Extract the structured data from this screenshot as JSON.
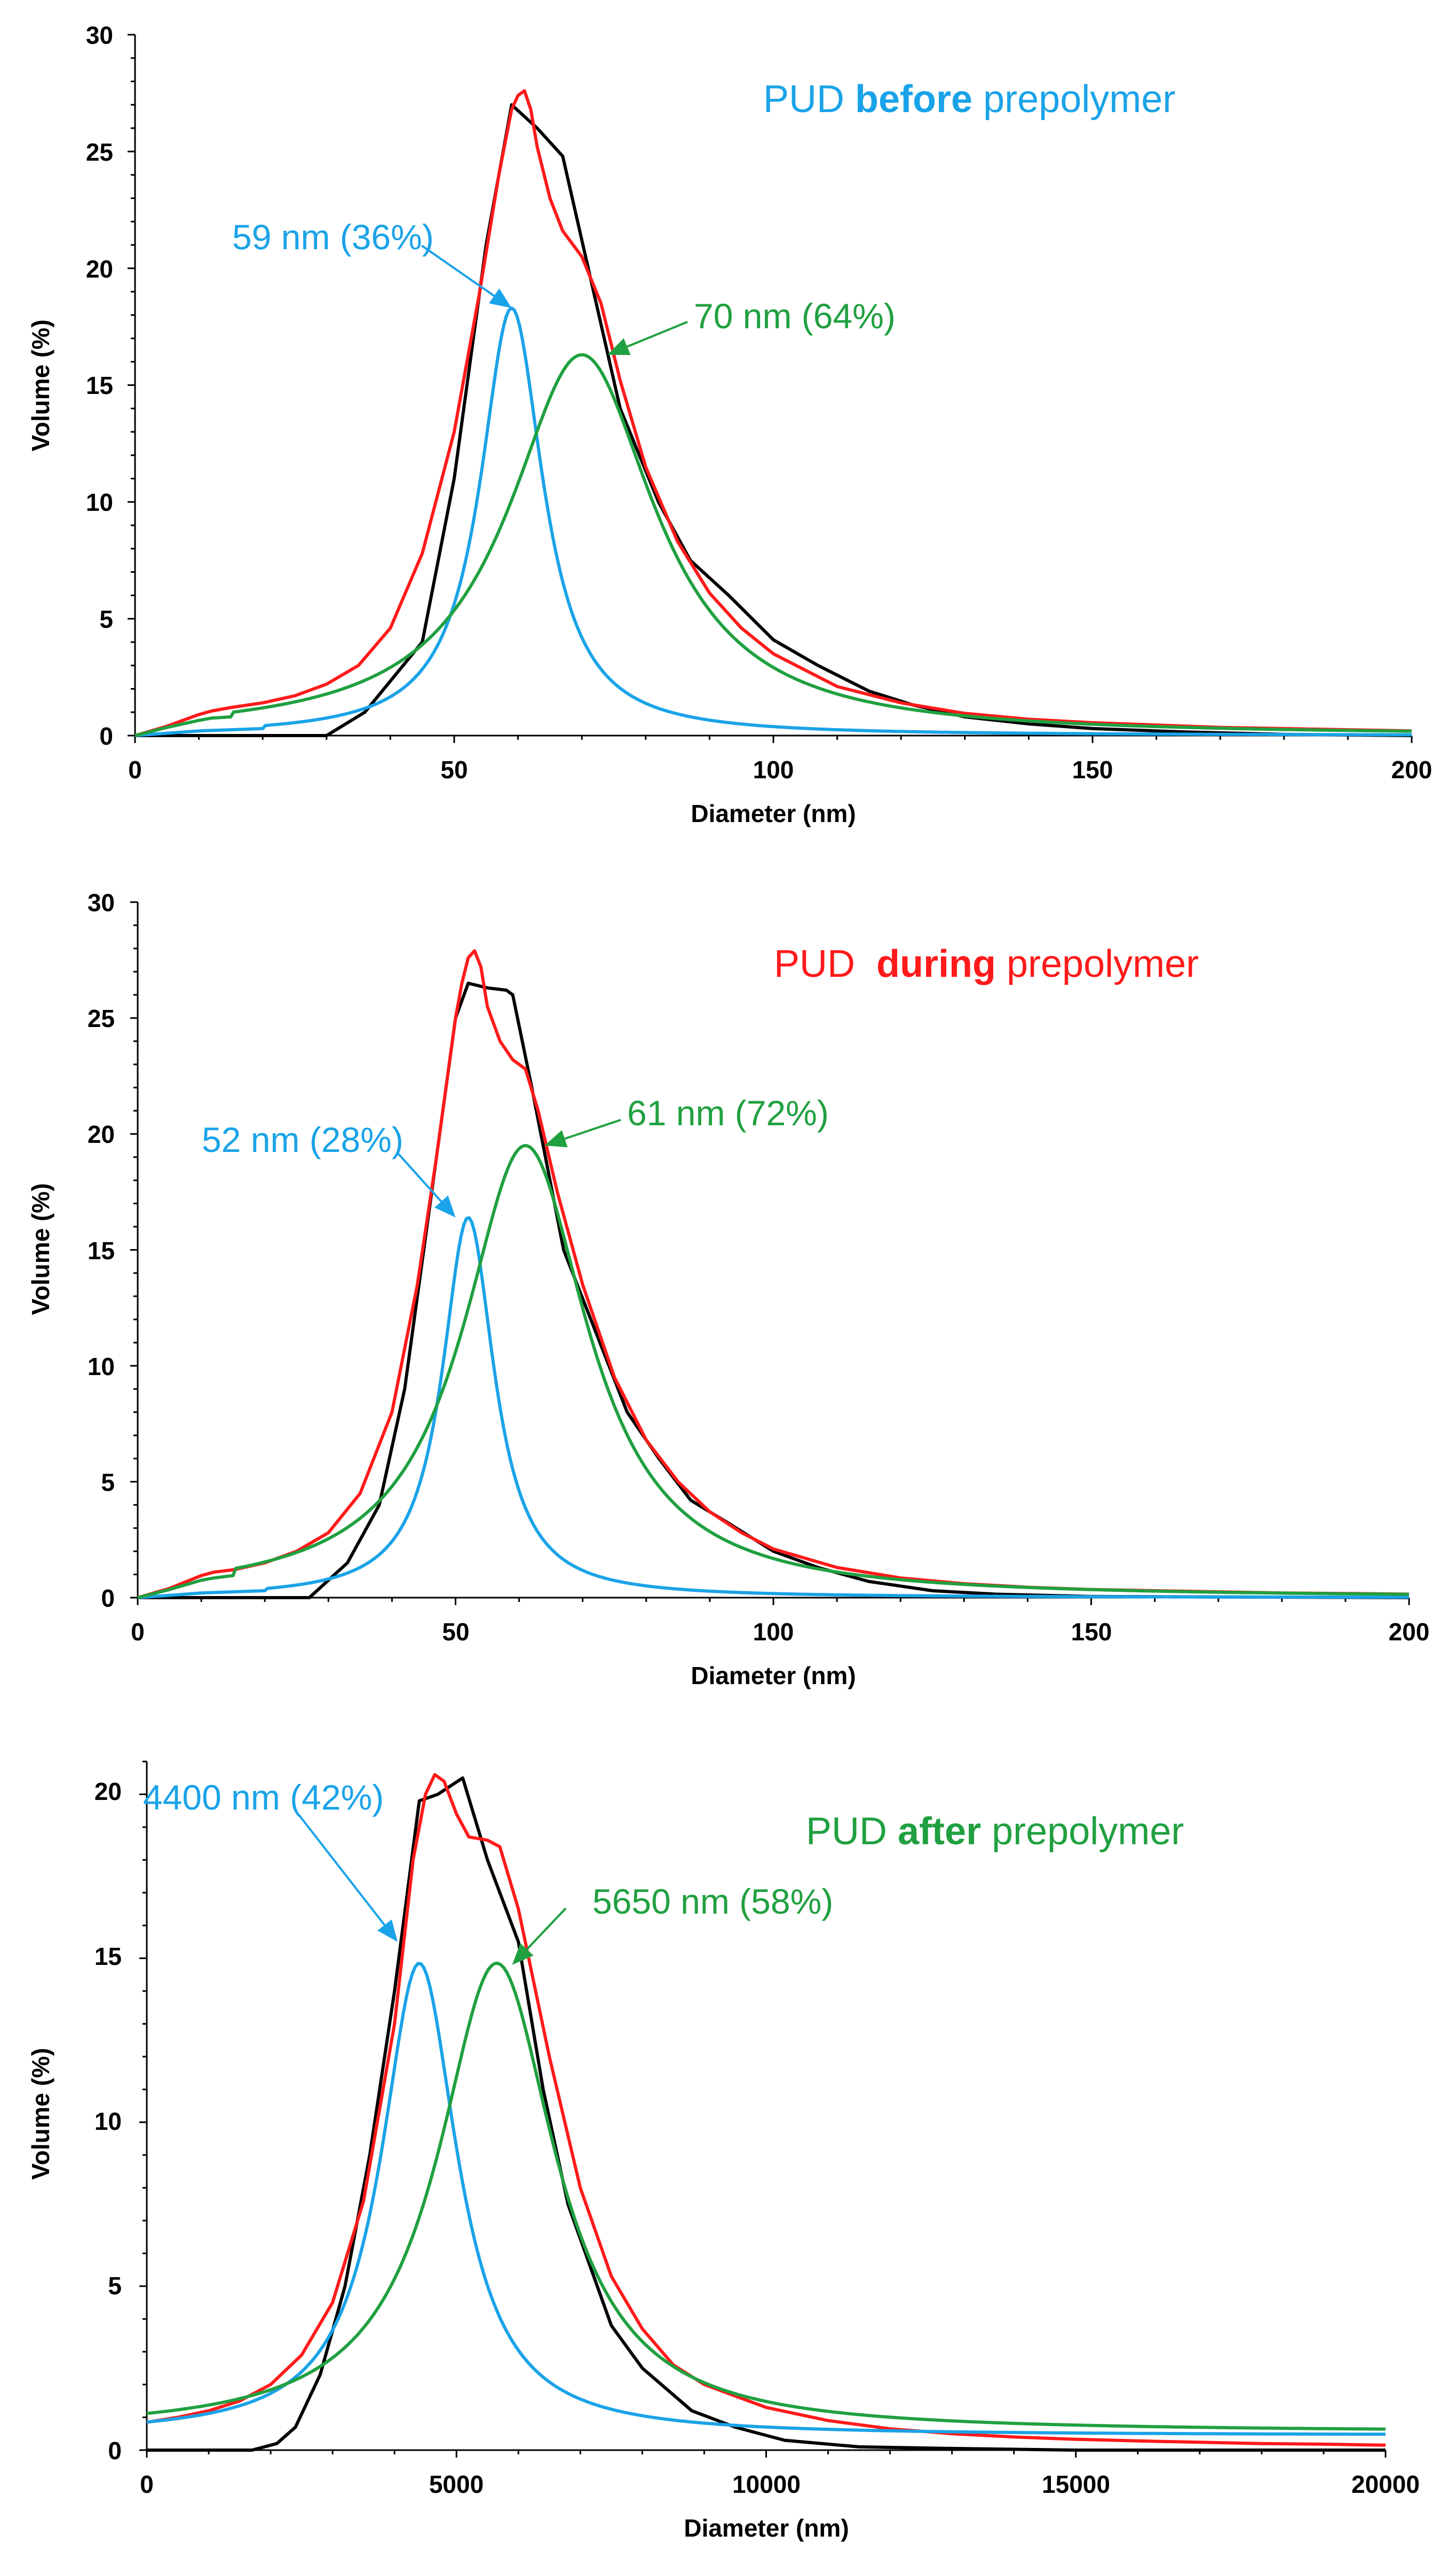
{
  "chart_data": [
    {
      "type": "line",
      "title": {
        "prefix": "PUD ",
        "bold": "before",
        "suffix": " prepolymer",
        "color": "#1AA3E8"
      },
      "xlabel": "Diameter (nm)",
      "ylabel": "Volume (%)",
      "xlim": [
        0,
        200
      ],
      "ylim": [
        0,
        30
      ],
      "xticks": [
        0,
        50,
        100,
        150,
        200
      ],
      "yticks": [
        0,
        5,
        10,
        15,
        20,
        25,
        30
      ],
      "x_minor": 10,
      "y_minor": 1,
      "series": [
        {
          "name": "measured",
          "color": "#000000",
          "kind": "points",
          "points": [
            [
              0,
              0
            ],
            [
              30,
              0
            ],
            [
              36,
              1
            ],
            [
              45,
              4
            ],
            [
              50,
              11
            ],
            [
              55,
              21
            ],
            [
              59,
              27
            ],
            [
              63,
              26
            ],
            [
              67,
              24.8
            ],
            [
              71,
              20
            ],
            [
              76,
              14
            ],
            [
              82,
              10
            ],
            [
              87,
              7.5
            ],
            [
              93,
              6
            ],
            [
              100,
              4.1
            ],
            [
              107,
              3
            ],
            [
              115,
              1.9
            ],
            [
              122,
              1.3
            ],
            [
              130,
              0.8
            ],
            [
              140,
              0.5
            ],
            [
              150,
              0.3
            ],
            [
              165,
              0.15
            ],
            [
              180,
              0.05
            ],
            [
              200,
              0
            ]
          ]
        },
        {
          "name": "fit-total",
          "color": "#FF1A1A",
          "kind": "points",
          "points": [
            [
              0,
              0
            ],
            [
              5,
              0.4
            ],
            [
              10,
              0.9
            ],
            [
              12,
              1.05
            ],
            [
              15,
              1.2
            ],
            [
              20,
              1.4
            ],
            [
              25,
              1.7
            ],
            [
              30,
              2.2
            ],
            [
              35,
              3
            ],
            [
              40,
              4.6
            ],
            [
              45,
              7.8
            ],
            [
              50,
              13
            ],
            [
              54,
              19
            ],
            [
              57,
              24
            ],
            [
              59,
              26.8
            ],
            [
              60,
              27.4
            ],
            [
              61,
              27.6
            ],
            [
              62,
              26.8
            ],
            [
              63,
              25.2
            ],
            [
              65,
              23
            ],
            [
              67,
              21.6
            ],
            [
              70,
              20.5
            ],
            [
              73,
              18.5
            ],
            [
              76,
              15.2
            ],
            [
              80,
              11.5
            ],
            [
              85,
              8.3
            ],
            [
              90,
              6.1
            ],
            [
              95,
              4.6
            ],
            [
              100,
              3.5
            ],
            [
              110,
              2.1
            ],
            [
              120,
              1.4
            ],
            [
              130,
              0.95
            ],
            [
              140,
              0.7
            ],
            [
              150,
              0.55
            ],
            [
              160,
              0.45
            ],
            [
              170,
              0.35
            ],
            [
              180,
              0.3
            ],
            [
              190,
              0.25
            ],
            [
              200,
              0.2
            ]
          ]
        },
        {
          "name": "peak-1",
          "color": "#1AA3E8",
          "kind": "lorentz",
          "center": 59,
          "height": 18.3,
          "hwhm": 6,
          "baseline": 0,
          "pre_points": [
            [
              0,
              0
            ],
            [
              5,
              0.1
            ],
            [
              10,
              0.2
            ],
            [
              15,
              0.25
            ],
            [
              20,
              0.3
            ]
          ]
        },
        {
          "name": "peak-2",
          "color": "#20A040",
          "kind": "lorentz",
          "center": 70,
          "height": 16.3,
          "hwhm": 14,
          "baseline": 0,
          "pre_points": [
            [
              0,
              0
            ],
            [
              5,
              0.35
            ],
            [
              10,
              0.65
            ],
            [
              12,
              0.75
            ],
            [
              15,
              0.8
            ]
          ]
        }
      ],
      "annotations": [
        {
          "text": "59 nm (36%)",
          "color": "#1AA3E8",
          "target": [
            59,
            18.3
          ]
        },
        {
          "text": "70 nm (64%)",
          "color": "#20A040",
          "target": [
            74,
            16.3
          ]
        }
      ]
    },
    {
      "type": "line",
      "title": {
        "prefix": "PUD  ",
        "bold": "during",
        "suffix": " prepolymer",
        "color": "#FF1A1A"
      },
      "xlabel": "Diameter (nm)",
      "ylabel": "Volume (%)",
      "xlim": [
        0,
        200
      ],
      "ylim": [
        0,
        30
      ],
      "xticks": [
        0,
        50,
        100,
        150,
        200
      ],
      "yticks": [
        0,
        5,
        10,
        15,
        20,
        25,
        30
      ],
      "x_minor": 10,
      "y_minor": 1,
      "series": [
        {
          "name": "measured",
          "color": "#000000",
          "kind": "points",
          "points": [
            [
              0,
              0
            ],
            [
              27,
              0
            ],
            [
              33,
              1.5
            ],
            [
              38,
              4
            ],
            [
              42,
              9
            ],
            [
              46,
              17
            ],
            [
              50,
              25
            ],
            [
              52,
              26.5
            ],
            [
              55,
              26.3
            ],
            [
              58,
              26.2
            ],
            [
              59,
              26
            ],
            [
              62,
              22
            ],
            [
              67,
              15
            ],
            [
              72,
              11.5
            ],
            [
              77,
              8
            ],
            [
              82,
              6
            ],
            [
              87,
              4.2
            ],
            [
              93,
              3.2
            ],
            [
              100,
              2
            ],
            [
              107,
              1.3
            ],
            [
              115,
              0.7
            ],
            [
              125,
              0.3
            ],
            [
              135,
              0.15
            ],
            [
              150,
              0.05
            ],
            [
              200,
              0
            ]
          ]
        },
        {
          "name": "fit-total",
          "color": "#FF1A1A",
          "kind": "points",
          "points": [
            [
              0,
              0
            ],
            [
              5,
              0.4
            ],
            [
              10,
              0.95
            ],
            [
              12,
              1.1
            ],
            [
              15,
              1.2
            ],
            [
              20,
              1.5
            ],
            [
              25,
              2.0
            ],
            [
              30,
              2.8
            ],
            [
              35,
              4.5
            ],
            [
              40,
              8
            ],
            [
              44,
              13.5
            ],
            [
              47,
              19
            ],
            [
              50,
              25
            ],
            [
              51,
              26.5
            ],
            [
              52,
              27.6
            ],
            [
              53,
              27.9
            ],
            [
              54,
              27.2
            ],
            [
              55,
              25.5
            ],
            [
              57,
              24
            ],
            [
              59,
              23.2
            ],
            [
              61,
              22.8
            ],
            [
              63,
              21
            ],
            [
              66,
              17.5
            ],
            [
              70,
              13.5
            ],
            [
              75,
              9.5
            ],
            [
              80,
              6.8
            ],
            [
              85,
              5
            ],
            [
              90,
              3.7
            ],
            [
              95,
              2.8
            ],
            [
              100,
              2.1
            ],
            [
              110,
              1.3
            ],
            [
              120,
              0.85
            ],
            [
              130,
              0.6
            ],
            [
              140,
              0.45
            ],
            [
              150,
              0.35
            ],
            [
              160,
              0.3
            ],
            [
              170,
              0.25
            ],
            [
              180,
              0.2
            ],
            [
              190,
              0.18
            ],
            [
              200,
              0.15
            ]
          ]
        },
        {
          "name": "peak-1",
          "color": "#1AA3E8",
          "kind": "lorentz",
          "center": 52,
          "height": 16.4,
          "hwhm": 5,
          "baseline": 0,
          "pre_points": [
            [
              0,
              0
            ],
            [
              5,
              0.1
            ],
            [
              10,
              0.2
            ],
            [
              15,
              0.25
            ],
            [
              20,
              0.3
            ]
          ]
        },
        {
          "name": "peak-2",
          "color": "#20A040",
          "kind": "lorentz",
          "center": 61,
          "height": 19.5,
          "hwhm": 12,
          "baseline": 0,
          "pre_points": [
            [
              0,
              0
            ],
            [
              5,
              0.35
            ],
            [
              10,
              0.75
            ],
            [
              12,
              0.85
            ],
            [
              15,
              0.95
            ]
          ]
        }
      ],
      "annotations": [
        {
          "text": "52 nm (28%)",
          "color": "#1AA3E8",
          "target": [
            50,
            16.4
          ]
        },
        {
          "text": "61 nm (72%)",
          "color": "#20A040",
          "target": [
            64,
            19.5
          ]
        }
      ]
    },
    {
      "type": "line",
      "title": {
        "prefix": "PUD ",
        "bold": "after",
        "suffix": " prepolymer",
        "color": "#20A040"
      },
      "xlabel": "Diameter (nm)",
      "ylabel": "Volume (%)",
      "xlim": [
        0,
        20000
      ],
      "ylim": [
        0,
        21
      ],
      "xticks": [
        0,
        5000,
        10000,
        15000,
        20000
      ],
      "yticks": [
        0,
        5,
        10,
        15,
        20
      ],
      "x_minor": 1000,
      "y_minor": 1,
      "series": [
        {
          "name": "measured",
          "color": "#000000",
          "kind": "points",
          "points": [
            [
              0,
              0
            ],
            [
              1700,
              0
            ],
            [
              2100,
              0.2
            ],
            [
              2400,
              0.7
            ],
            [
              2800,
              2.3
            ],
            [
              3200,
              5
            ],
            [
              3600,
              9
            ],
            [
              4000,
              14
            ],
            [
              4400,
              19.8
            ],
            [
              4700,
              20
            ],
            [
              5100,
              20.5
            ],
            [
              5500,
              18
            ],
            [
              6000,
              15.5
            ],
            [
              6400,
              11
            ],
            [
              6800,
              7.5
            ],
            [
              7500,
              3.8
            ],
            [
              8000,
              2.5
            ],
            [
              8800,
              1.2
            ],
            [
              9500,
              0.7
            ],
            [
              10300,
              0.3
            ],
            [
              11500,
              0.1
            ],
            [
              13000,
              0.05
            ],
            [
              15000,
              0
            ],
            [
              20000,
              0
            ]
          ]
        },
        {
          "name": "fit-total",
          "color": "#FF1A1A",
          "kind": "points",
          "points": [
            [
              0,
              0.85
            ],
            [
              500,
              1.0
            ],
            [
              1000,
              1.2
            ],
            [
              1500,
              1.5
            ],
            [
              2000,
              2
            ],
            [
              2500,
              2.9
            ],
            [
              3000,
              4.5
            ],
            [
              3500,
              7.6
            ],
            [
              4000,
              13
            ],
            [
              4300,
              18
            ],
            [
              4500,
              20
            ],
            [
              4650,
              20.6
            ],
            [
              4800,
              20.4
            ],
            [
              5000,
              19.4
            ],
            [
              5200,
              18.7
            ],
            [
              5500,
              18.6
            ],
            [
              5700,
              18.4
            ],
            [
              6000,
              16.5
            ],
            [
              6500,
              12
            ],
            [
              7000,
              8
            ],
            [
              7500,
              5.3
            ],
            [
              8000,
              3.7
            ],
            [
              8500,
              2.6
            ],
            [
              9000,
              2
            ],
            [
              10000,
              1.3
            ],
            [
              11000,
              0.9
            ],
            [
              12000,
              0.65
            ],
            [
              13000,
              0.5
            ],
            [
              14000,
              0.4
            ],
            [
              15000,
              0.33
            ],
            [
              16000,
              0.28
            ],
            [
              17000,
              0.24
            ],
            [
              18000,
              0.2
            ],
            [
              19000,
              0.18
            ],
            [
              20000,
              0.15
            ]
          ]
        },
        {
          "name": "peak-1",
          "color": "#1AA3E8",
          "kind": "lorentz",
          "center": 4400,
          "height": 14.4,
          "hwhm": 750,
          "baseline": 0.45,
          "pre_points": []
        },
        {
          "name": "peak-2",
          "color": "#20A040",
          "kind": "lorentz",
          "center": 5650,
          "height": 14.3,
          "hwhm": 1150,
          "baseline": 0.55,
          "pre_points": []
        }
      ],
      "annotations": [
        {
          "text": "4400 nm (42%)",
          "color": "#1AA3E8",
          "target": [
            4050,
            15.5
          ]
        },
        {
          "text": "5650 nm (58%)",
          "color": "#20A040",
          "target": [
            5900,
            14.8
          ]
        }
      ]
    }
  ]
}
